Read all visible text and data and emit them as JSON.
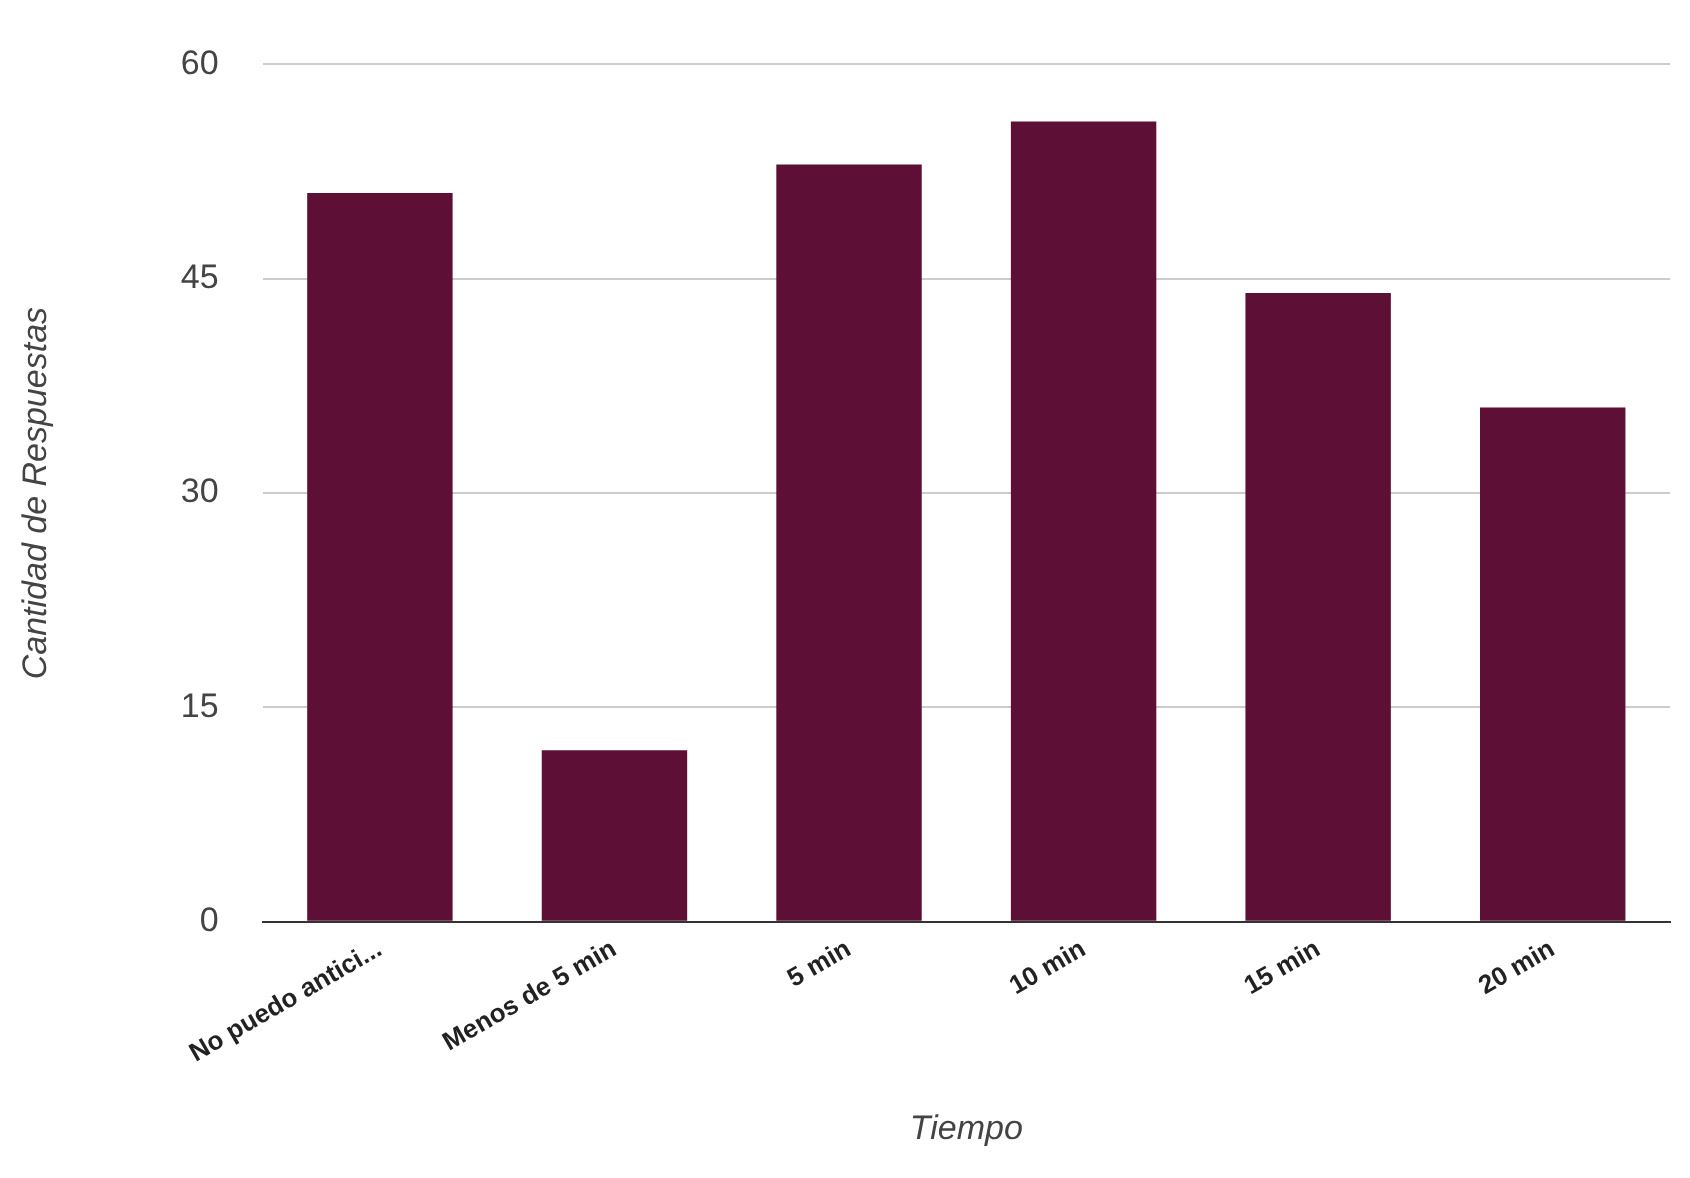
{
  "chart_data": {
    "type": "bar",
    "xlabel": "Tiempo",
    "ylabel": "Cantidad de Respuestas",
    "categories": [
      "No puedo antici...",
      "Menos de 5 min",
      "5 min",
      "10 min",
      "15 min",
      "20 min"
    ],
    "values": [
      51,
      12,
      53,
      56,
      44,
      36
    ],
    "color": "#5e0f35",
    "ylim": [
      0,
      60
    ],
    "yticks": [
      0,
      15,
      30,
      45,
      60
    ],
    "grid": "y"
  }
}
